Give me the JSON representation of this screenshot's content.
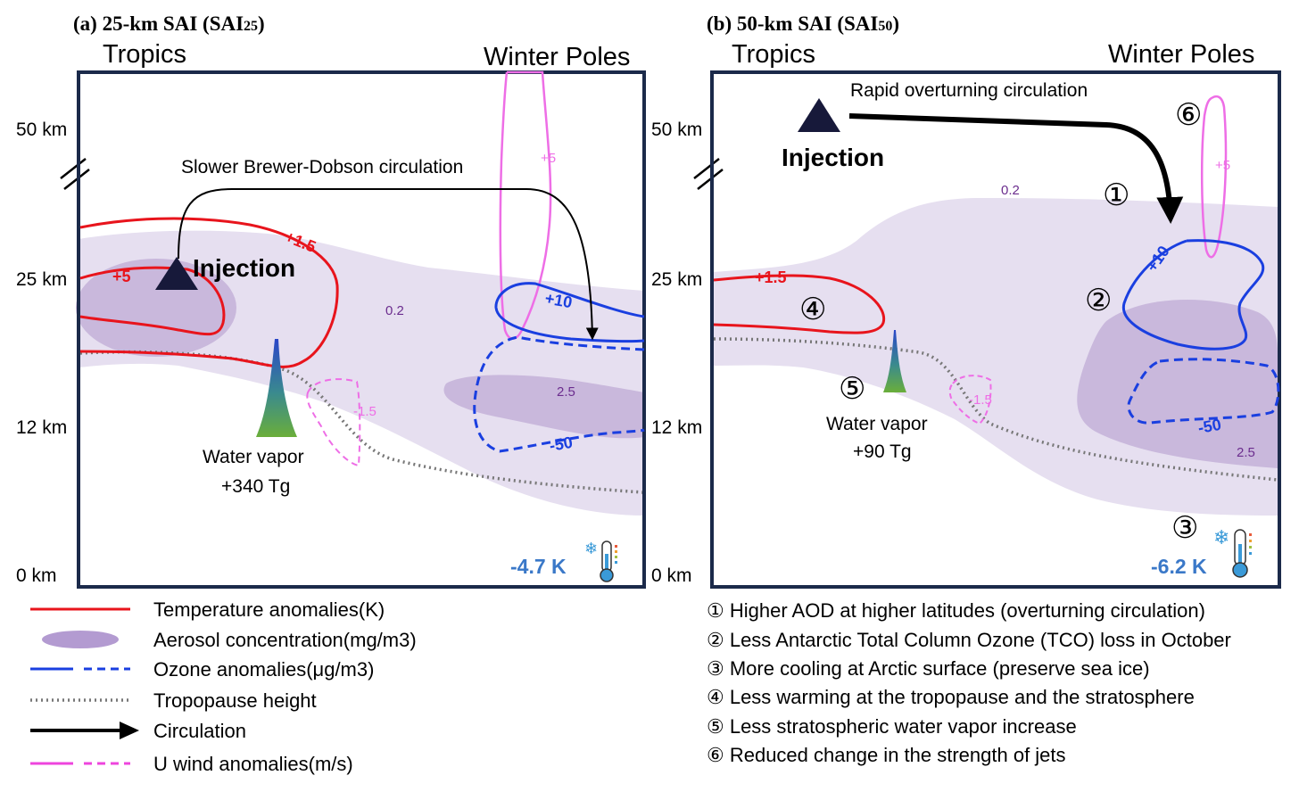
{
  "panel_a": {
    "title": "(a) 25-km SAI (SAI",
    "title_sub": "25",
    "title_end": ")",
    "region_left": "Tropics",
    "region_right": "Winter Poles",
    "alt_labels": [
      "50 km",
      "25 km",
      "12 km",
      "0 km"
    ],
    "circulation_label": "Slower Brewer-Dobson circulation",
    "injection": "Injection",
    "water_vapor": "Water vapor",
    "water_vapor_amount": "+340 Tg",
    "temp_labels": [
      "+5",
      "+1.5"
    ],
    "ozone_labels": [
      "+10",
      "-50"
    ],
    "wind_labels": [
      "+5",
      "-1.5"
    ],
    "aerosol_labels": [
      "0.2",
      "2.5"
    ],
    "surface_temp": "-4.7 K"
  },
  "panel_b": {
    "title": "(b) 50-km SAI (SAI",
    "title_sub": "50",
    "title_end": ")",
    "region_left": "Tropics",
    "region_right": "Winter Poles",
    "alt_labels": [
      "50 km",
      "25 km",
      "12 km",
      "0 km"
    ],
    "circulation_label": "Rapid overturning circulation",
    "injection": "Injection",
    "water_vapor": "Water vapor",
    "water_vapor_amount": "+90 Tg",
    "temp_labels": [
      "+1.5"
    ],
    "ozone_labels": [
      "+10",
      "-50"
    ],
    "wind_labels": [
      "+5",
      "-1.5"
    ],
    "aerosol_labels": [
      "0.2",
      "2.5"
    ],
    "surface_temp": "-6.2 K",
    "markers": [
      "⑥",
      "①",
      "②",
      "④",
      "⑤",
      "③"
    ]
  },
  "legend": [
    {
      "label": "Temperature anomalies(K)",
      "style": "red-line"
    },
    {
      "label": "Aerosol concentration(mg/m3)",
      "style": "purple-ellipse"
    },
    {
      "label": "Ozone anomalies(μg/m3)",
      "style": "blue-solid-dashed"
    },
    {
      "label": "Tropopause height",
      "style": "gray-dotted"
    },
    {
      "label": "Circulation",
      "style": "black-arrow"
    },
    {
      "label": "U wind anomalies(m/s)",
      "style": "pink-solid-dashed"
    }
  ],
  "notes": [
    "① Higher AOD at higher latitudes (overturning circulation)",
    "② Less Antarctic Total Column Ozone (TCO) loss in October",
    "③ More cooling at Arctic surface (preserve sea ice)",
    "④ Less warming at the tropopause and the stratosphere",
    "⑤ Less stratospheric water vapor increase",
    "⑥ Reduced change in the strength of jets"
  ],
  "colors": {
    "temperature": "#e8141c",
    "ozone": "#1a3fe0",
    "wind": "#ee6ee6",
    "aerosol_light": "#e8e0f0",
    "aerosol_dark": "#c7b5dc",
    "tropopause": "#777777",
    "surface_temp": "#3a78c8",
    "frame": "#1b2a4a",
    "aerosol_label": "#6b2d8e"
  }
}
